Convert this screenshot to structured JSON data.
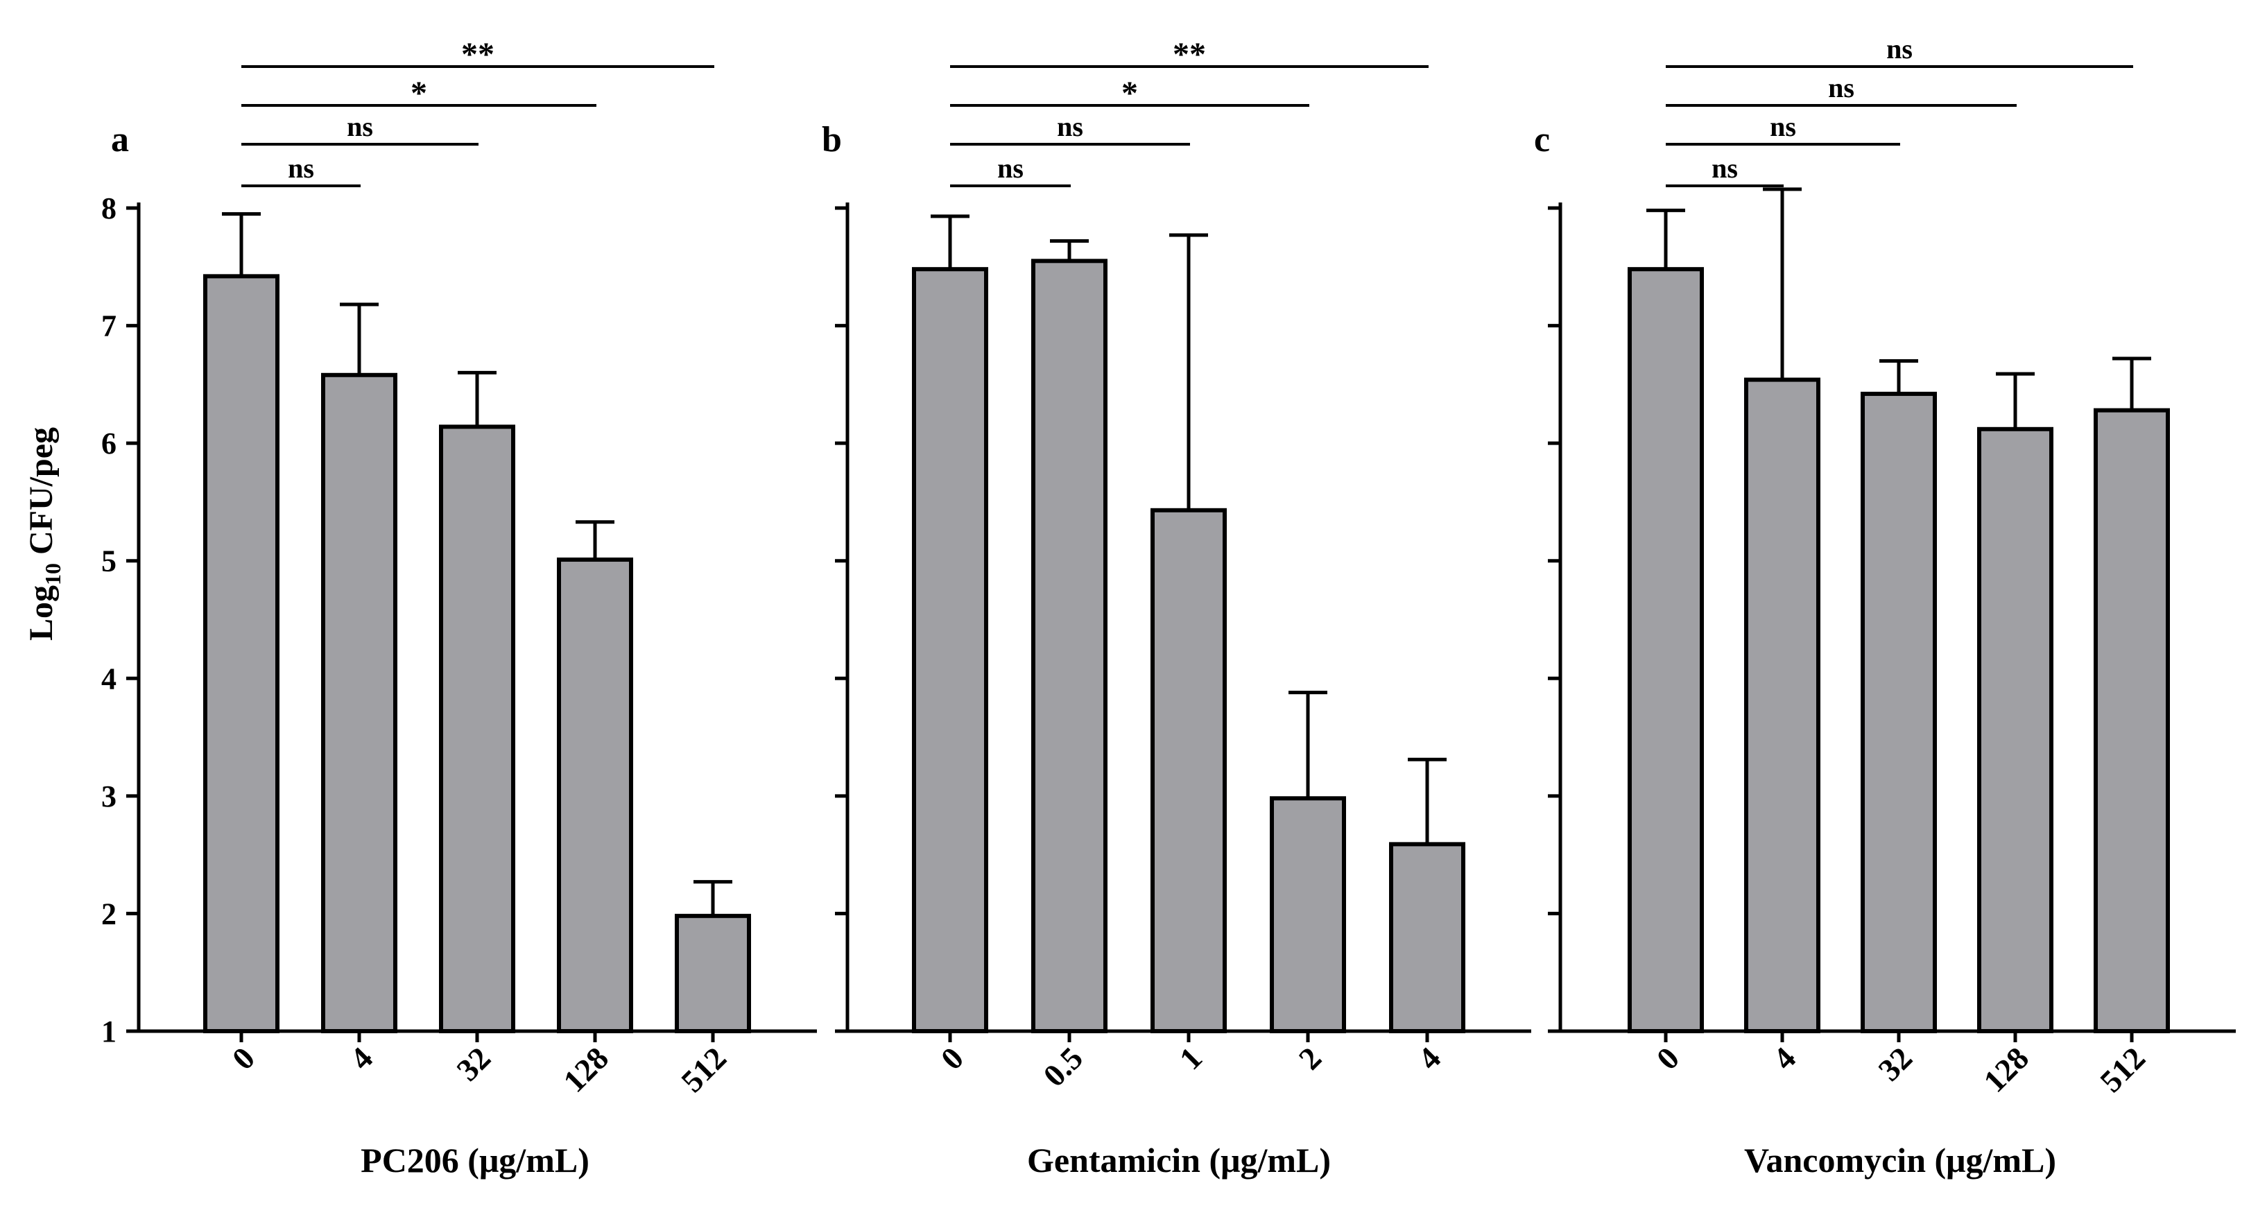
{
  "figure": {
    "y_axis_label_main": "Log",
    "y_axis_label_sub": "10",
    "y_axis_label_rest": " CFU/peg"
  },
  "colors": {
    "bar_fill": "#a0a0a4",
    "stroke": "#000000",
    "background": "#ffffff"
  },
  "chart_data": [
    {
      "type": "bar",
      "panel_letter": "a",
      "xlabel": "PC206 (μg/mL)",
      "ylabel": "Log10 CFU/peg",
      "categories": [
        "0",
        "4",
        "32",
        "128",
        "512"
      ],
      "values": [
        7.42,
        6.58,
        6.14,
        5.01,
        1.98
      ],
      "errors": [
        0.53,
        0.6,
        0.46,
        0.32,
        0.29
      ],
      "ylim": [
        1,
        8
      ],
      "yticks": [
        "1",
        "2",
        "3",
        "4",
        "5",
        "6",
        "7",
        "8"
      ],
      "show_tick_labels": true,
      "significance": [
        {
          "from": "0",
          "to": "4",
          "label": "ns"
        },
        {
          "from": "0",
          "to": "32",
          "label": "ns"
        },
        {
          "from": "0",
          "to": "128",
          "label": "*"
        },
        {
          "from": "0",
          "to": "512",
          "label": "**"
        }
      ]
    },
    {
      "type": "bar",
      "panel_letter": "b",
      "xlabel": "Gentamicin (μg/mL)",
      "ylabel": "Log10 CFU/peg",
      "categories": [
        "0",
        "0.5",
        "1",
        "2",
        "4"
      ],
      "values": [
        7.48,
        7.55,
        5.43,
        2.98,
        2.59
      ],
      "errors": [
        0.45,
        0.17,
        2.34,
        0.9,
        0.72
      ],
      "ylim": [
        1,
        8
      ],
      "yticks": [
        "1",
        "2",
        "3",
        "4",
        "5",
        "6",
        "7",
        "8"
      ],
      "show_tick_labels": false,
      "significance": [
        {
          "from": "0",
          "to": "0.5",
          "label": "ns"
        },
        {
          "from": "0",
          "to": "1",
          "label": "ns"
        },
        {
          "from": "0",
          "to": "2",
          "label": "*"
        },
        {
          "from": "0",
          "to": "4",
          "label": "**"
        }
      ]
    },
    {
      "type": "bar",
      "panel_letter": "c",
      "xlabel": "Vancomycin (μg/mL)",
      "ylabel": "Log10 CFU/peg",
      "categories": [
        "0",
        "4",
        "32",
        "128",
        "512"
      ],
      "values": [
        7.48,
        6.54,
        6.42,
        6.12,
        6.28
      ],
      "errors": [
        0.5,
        1.62,
        0.28,
        0.47,
        0.44
      ],
      "ylim": [
        1,
        8
      ],
      "yticks": [
        "1",
        "2",
        "3",
        "4",
        "5",
        "6",
        "7",
        "8"
      ],
      "show_tick_labels": false,
      "significance": [
        {
          "from": "0",
          "to": "4",
          "label": "ns"
        },
        {
          "from": "0",
          "to": "32",
          "label": "ns"
        },
        {
          "from": "0",
          "to": "128",
          "label": "ns"
        },
        {
          "from": "0",
          "to": "512",
          "label": "ns"
        }
      ]
    }
  ]
}
